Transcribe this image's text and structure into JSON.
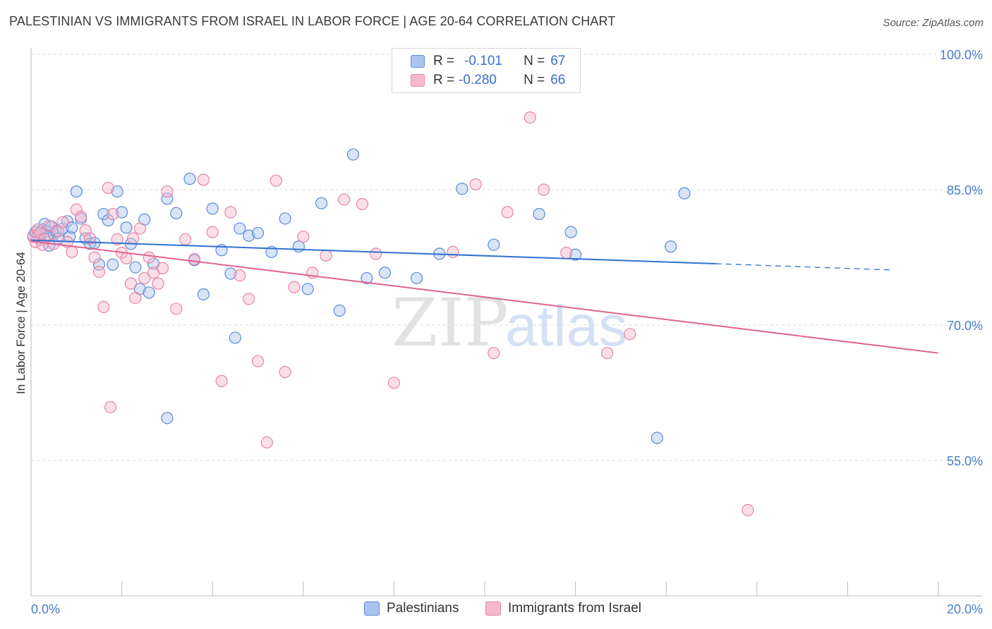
{
  "title": "PALESTINIAN VS IMMIGRANTS FROM ISRAEL IN LABOR FORCE | AGE 20-64 CORRELATION CHART",
  "source": "Source: ZipAtlas.com",
  "watermark": {
    "zip": "ZIP",
    "atlas": "atlas"
  },
  "legend": {
    "rows": [
      {
        "r_label": "R =",
        "r_value": "-0.101",
        "n_label": "N =",
        "n_value": "67"
      },
      {
        "r_label": "R =",
        "r_value": "-0.280",
        "n_label": "N =",
        "n_value": "66"
      }
    ]
  },
  "bottom_legend": [
    "Palestinians",
    "Immigrants from Israel"
  ],
  "colors": {
    "blue_fill": "#aac4ef",
    "blue_stroke": "#5b8bd6",
    "blue_line": "#2f72d1",
    "pink_fill": "#f6b9cc",
    "pink_stroke": "#e585a6",
    "pink_line": "#e0628e",
    "tick_text": "#4a7cc9",
    "grid": "#dddddd"
  },
  "chart_data": {
    "type": "scatter",
    "title": "PALESTINIAN VS IMMIGRANTS FROM ISRAEL IN LABOR FORCE | AGE 20-64 CORRELATION CHART",
    "xlabel": "",
    "ylabel": "In Labor Force | Age 20-64",
    "xlim": [
      0,
      20
    ],
    "ylim": [
      40,
      102
    ],
    "x_tick_labels": [
      "0.0%",
      "20.0%"
    ],
    "y_ticks": [
      55,
      70,
      85,
      100
    ],
    "y_tick_labels": [
      "55.0%",
      "70.0%",
      "85.0%",
      "100.0%"
    ],
    "series": [
      {
        "name": "Palestinians",
        "color": "blue",
        "R": -0.101,
        "N": 67,
        "trend": {
          "x0": 0,
          "y0": 79.4,
          "x1": 15.1,
          "y1": 76.8,
          "dash_to_x": 19.0,
          "dash_to_y": 76.1
        },
        "points": [
          [
            0.05,
            79.8
          ],
          [
            0.1,
            80.3
          ],
          [
            0.15,
            80.0
          ],
          [
            0.2,
            79.5
          ],
          [
            0.25,
            80.6
          ],
          [
            0.3,
            81.2
          ],
          [
            0.35,
            80.4
          ],
          [
            0.4,
            79.9
          ],
          [
            0.45,
            80.9
          ],
          [
            0.5,
            80.1
          ],
          [
            0.55,
            80.4
          ],
          [
            0.6,
            79.6
          ],
          [
            0.7,
            80.7
          ],
          [
            0.8,
            81.5
          ],
          [
            0.85,
            79.8
          ],
          [
            0.9,
            80.8
          ],
          [
            1.0,
            84.8
          ],
          [
            1.1,
            81.8
          ],
          [
            1.2,
            79.6
          ],
          [
            1.3,
            79.0
          ],
          [
            1.4,
            79.1
          ],
          [
            1.5,
            76.7
          ],
          [
            1.6,
            82.3
          ],
          [
            1.7,
            81.6
          ],
          [
            1.8,
            76.7
          ],
          [
            1.9,
            84.8
          ],
          [
            2.0,
            82.5
          ],
          [
            2.1,
            80.8
          ],
          [
            2.2,
            79.0
          ],
          [
            2.3,
            76.4
          ],
          [
            2.4,
            74.0
          ],
          [
            2.5,
            81.7
          ],
          [
            2.6,
            73.6
          ],
          [
            2.7,
            76.8
          ],
          [
            3.0,
            84.0
          ],
          [
            3.2,
            82.4
          ],
          [
            3.5,
            86.2
          ],
          [
            3.6,
            77.2
          ],
          [
            3.8,
            73.4
          ],
          [
            4.0,
            82.9
          ],
          [
            4.2,
            78.3
          ],
          [
            4.4,
            75.7
          ],
          [
            4.6,
            80.7
          ],
          [
            4.8,
            79.9
          ],
          [
            5.0,
            80.2
          ],
          [
            5.3,
            78.1
          ],
          [
            5.6,
            81.8
          ],
          [
            5.9,
            78.7
          ],
          [
            6.1,
            74.0
          ],
          [
            6.4,
            83.5
          ],
          [
            6.8,
            71.6
          ],
          [
            7.1,
            88.9
          ],
          [
            7.4,
            75.2
          ],
          [
            7.8,
            75.8
          ],
          [
            8.5,
            75.2
          ],
          [
            9.0,
            77.9
          ],
          [
            9.5,
            85.1
          ],
          [
            10.2,
            78.9
          ],
          [
            11.2,
            82.3
          ],
          [
            11.9,
            80.3
          ],
          [
            12.0,
            77.8
          ],
          [
            13.8,
            57.5
          ],
          [
            14.1,
            78.7
          ],
          [
            14.4,
            84.6
          ],
          [
            0.4,
            78.8
          ],
          [
            4.5,
            68.6
          ],
          [
            3.0,
            59.7
          ]
        ]
      },
      {
        "name": "Immigrants from Israel",
        "color": "pink",
        "R": -0.28,
        "N": 66,
        "trend": {
          "x0": 0,
          "y0": 79.3,
          "x1": 20,
          "y1": 66.9
        },
        "points": [
          [
            0.05,
            79.9
          ],
          [
            0.1,
            79.2
          ],
          [
            0.15,
            80.6
          ],
          [
            0.2,
            80.2
          ],
          [
            0.3,
            79.5
          ],
          [
            0.4,
            81.0
          ],
          [
            0.5,
            79.0
          ],
          [
            0.6,
            80.4
          ],
          [
            0.7,
            81.4
          ],
          [
            0.8,
            79.2
          ],
          [
            0.9,
            78.1
          ],
          [
            1.0,
            82.8
          ],
          [
            1.1,
            82.0
          ],
          [
            1.2,
            80.5
          ],
          [
            1.3,
            79.6
          ],
          [
            1.4,
            77.5
          ],
          [
            1.5,
            75.9
          ],
          [
            1.6,
            72.0
          ],
          [
            1.7,
            85.2
          ],
          [
            1.8,
            82.3
          ],
          [
            1.9,
            79.5
          ],
          [
            2.0,
            78.0
          ],
          [
            2.1,
            77.4
          ],
          [
            2.2,
            74.6
          ],
          [
            2.3,
            73.0
          ],
          [
            2.4,
            80.7
          ],
          [
            2.5,
            75.2
          ],
          [
            2.6,
            77.5
          ],
          [
            2.7,
            75.8
          ],
          [
            2.8,
            74.6
          ],
          [
            2.9,
            76.3
          ],
          [
            3.0,
            84.8
          ],
          [
            3.2,
            71.8
          ],
          [
            3.4,
            79.5
          ],
          [
            3.6,
            77.3
          ],
          [
            3.8,
            86.1
          ],
          [
            4.0,
            80.3
          ],
          [
            4.2,
            63.8
          ],
          [
            4.4,
            82.5
          ],
          [
            4.6,
            75.5
          ],
          [
            4.8,
            72.9
          ],
          [
            5.0,
            66.0
          ],
          [
            5.2,
            57.0
          ],
          [
            5.4,
            86.0
          ],
          [
            5.6,
            64.8
          ],
          [
            5.8,
            74.2
          ],
          [
            6.0,
            79.8
          ],
          [
            6.2,
            75.8
          ],
          [
            6.5,
            77.7
          ],
          [
            6.9,
            83.9
          ],
          [
            7.3,
            83.4
          ],
          [
            7.6,
            77.9
          ],
          [
            8.0,
            63.6
          ],
          [
            9.3,
            78.1
          ],
          [
            9.8,
            85.6
          ],
          [
            10.2,
            66.9
          ],
          [
            10.5,
            82.5
          ],
          [
            11.0,
            93.0
          ],
          [
            11.3,
            85.0
          ],
          [
            11.8,
            78.0
          ],
          [
            12.7,
            66.9
          ],
          [
            13.2,
            69.0
          ],
          [
            15.8,
            49.5
          ],
          [
            0.25,
            78.9
          ],
          [
            1.75,
            60.9
          ],
          [
            2.25,
            79.6
          ]
        ]
      }
    ]
  }
}
